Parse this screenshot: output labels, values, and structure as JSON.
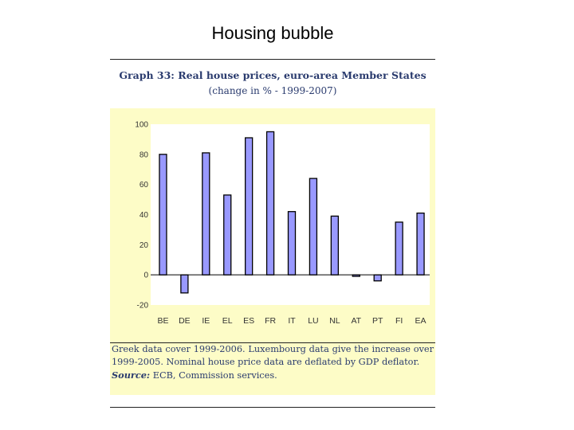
{
  "slide": {
    "title": "Housing bubble"
  },
  "figure": {
    "heading": "Graph 33: Real house prices, euro-area Member States",
    "subheading": "(change in % - 1999-2007)",
    "note": "Greek data cover 1999-2006. Luxembourg data give the increase over 1999-2005. Nominal house price data are deflated by GDP deflator.",
    "source_label": "Source:",
    "source_text": " ECB, Commission services."
  },
  "colors": {
    "bar_fill": "#9999ff",
    "bar_stroke": "#000000",
    "panel_bg": "#fdfcc7",
    "plot_bg": "#ffffff",
    "text": "#2a3b6e"
  },
  "chart_data": {
    "type": "bar",
    "categories": [
      "BE",
      "DE",
      "IE",
      "EL",
      "ES",
      "FR",
      "IT",
      "LU",
      "NL",
      "AT",
      "PT",
      "FI",
      "EA"
    ],
    "values": [
      80,
      -12,
      81,
      53,
      91,
      95,
      42,
      64,
      39,
      -1,
      -4,
      35,
      41
    ],
    "ylim": [
      -20,
      100
    ],
    "yticks": [
      -20,
      0,
      20,
      40,
      60,
      80,
      100
    ],
    "title": "Graph 33: Real house prices, euro-area Member States",
    "subtitle": "(change in % - 1999-2007)",
    "xlabel": "",
    "ylabel": "",
    "grid": false,
    "legend": "none"
  }
}
